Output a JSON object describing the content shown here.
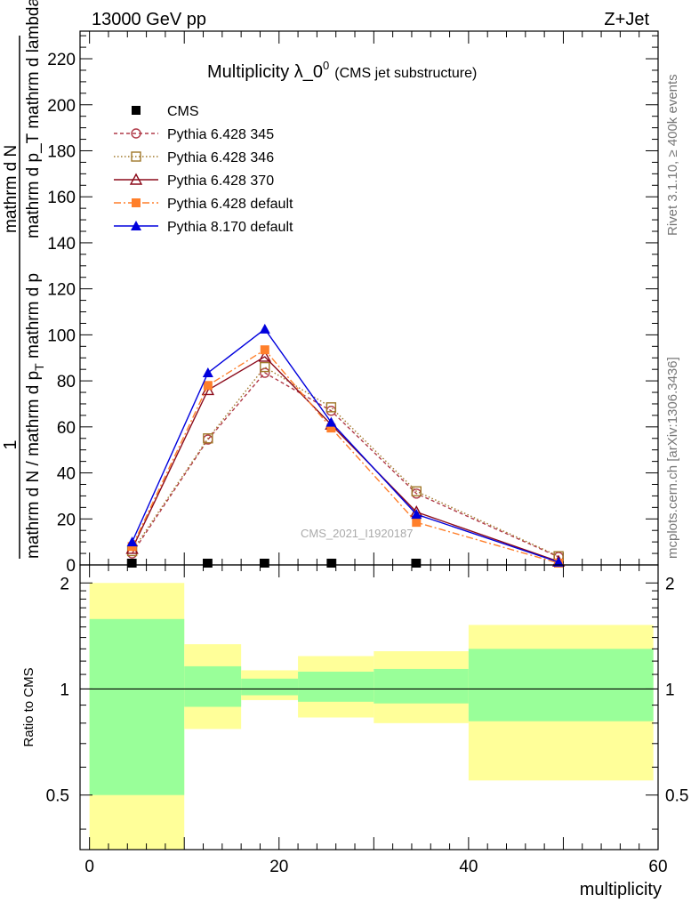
{
  "header": {
    "left": "13000 GeV pp",
    "right": "Z+Jet"
  },
  "side_labels": {
    "rivet": "Rivet 3.1.10, ≥ 400k events",
    "mcplots": "mcplots.cern.ch [arXiv:1306.3436]"
  },
  "chart_data": {
    "type": "line",
    "title": "Multiplicity λ_0",
    "title_sup": "0",
    "title_suffix": "(CMS jet substructure)",
    "watermark": "CMS_2021_I1920187",
    "ylabel_numerator": "1",
    "ylabel_denominator_left": "mathrm d N / mathrm d p",
    "ylabel_denominator_right": "mathrm d p",
    "ylabel_sub": "T",
    "ylabel_tail": "mathrm d N",
    "ylabel_frac_denominator": "mathrm d p_T mathrm d lambda",
    "ylabel_main_full": "mathrm d N / mathrm d p_T mathrm d p_T mathrm d lambda",
    "ylabel_ratio": "Ratio to CMS",
    "xlabel": "multiplicity",
    "xlim": [
      -1,
      60
    ],
    "ylim": [
      0,
      232
    ],
    "ratio_ylim": [
      0.35,
      2.25
    ],
    "x_ticks": [
      0,
      20,
      40,
      60
    ],
    "y_ticks": [
      0,
      20,
      40,
      60,
      80,
      100,
      120,
      140,
      160,
      180,
      200,
      220
    ],
    "ratio_y_ticks": [
      0.5,
      1,
      2
    ],
    "x_tick_labels": [
      "0",
      "20",
      "40",
      "60"
    ],
    "y_tick_labels": [
      "0",
      "20",
      "40",
      "60",
      "80",
      "100",
      "120",
      "140",
      "160",
      "180",
      "200",
      "220"
    ],
    "ratio_tick_labels": [
      "0.5",
      "1",
      "2"
    ],
    "x": [
      4.5,
      12.5,
      18.5,
      25.5,
      34.5,
      49.5
    ],
    "bins": [
      [
        0,
        10
      ],
      [
        10,
        16
      ],
      [
        16,
        22
      ],
      [
        22,
        30
      ],
      [
        30,
        40
      ],
      [
        40,
        59
      ]
    ],
    "series": [
      {
        "name": "CMS",
        "color": "#000000",
        "marker": "square-filled",
        "dash": "",
        "values": [
          0.3,
          0.6,
          0.6,
          0.4,
          0.3,
          0.05
        ]
      },
      {
        "name": "Pythia 6.428 345",
        "color": "#b03a48",
        "marker": "circle-open",
        "dash": "4,3",
        "values": [
          5,
          54.5,
          83.5,
          67,
          31,
          3.5
        ]
      },
      {
        "name": "Pythia 6.428 346",
        "color": "#a0782a",
        "marker": "square-open",
        "dash": "1.5,2.5",
        "values": [
          6,
          55,
          86,
          68.5,
          32,
          3.8
        ]
      },
      {
        "name": "Pythia 6.428 370",
        "color": "#8b0a1a",
        "marker": "triangle-open",
        "dash": "",
        "values": [
          7,
          76,
          90.5,
          61,
          23,
          1.5
        ]
      },
      {
        "name": "Pythia 6.428 default",
        "color": "#ff7f2a",
        "marker": "square-filled",
        "dash": "8,3,2,3",
        "values": [
          8,
          78,
          93.5,
          59.5,
          18.5,
          0.8
        ]
      },
      {
        "name": "Pythia 8.170 default",
        "color": "#0000dd",
        "marker": "triangle-filled",
        "dash": "",
        "values": [
          10,
          83.5,
          102.5,
          62,
          22,
          1.2
        ]
      }
    ],
    "ratio_bands": [
      {
        "x0": 0,
        "x1": 10,
        "yellow": [
          0.35,
          2.0
        ],
        "green": [
          0.5,
          1.58
        ]
      },
      {
        "x0": 10,
        "x1": 16,
        "yellow": [
          0.77,
          1.34
        ],
        "green": [
          0.89,
          1.16
        ]
      },
      {
        "x0": 16,
        "x1": 22,
        "yellow": [
          0.93,
          1.13
        ],
        "green": [
          0.96,
          1.07
        ]
      },
      {
        "x0": 22,
        "x1": 30,
        "yellow": [
          0.83,
          1.24
        ],
        "green": [
          0.92,
          1.12
        ]
      },
      {
        "x0": 30,
        "x1": 40,
        "yellow": [
          0.8,
          1.28
        ],
        "green": [
          0.91,
          1.14
        ]
      },
      {
        "x0": 40,
        "x1": 59.5,
        "yellow": [
          0.55,
          1.52
        ],
        "green": [
          0.81,
          1.3
        ]
      }
    ],
    "legend_position": "top-left",
    "grid": false
  }
}
